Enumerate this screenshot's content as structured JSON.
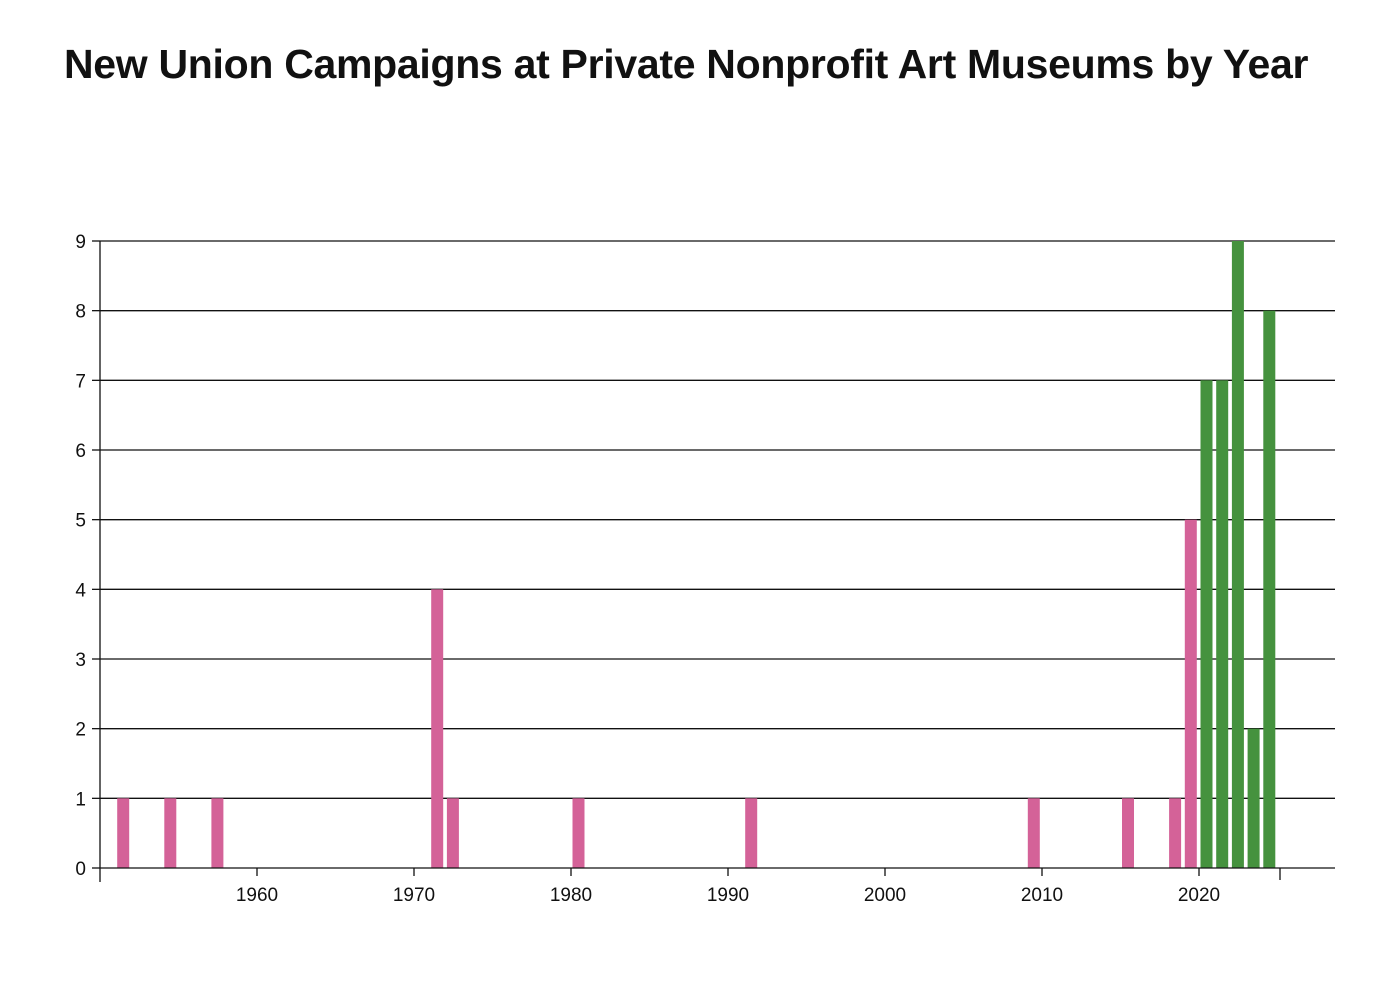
{
  "chart_data": {
    "type": "bar",
    "title": "New Union Campaigns at Private Nonprofit Art Museums by Year",
    "xlabel": "",
    "ylabel": "",
    "xlim": [
      1950,
      2026
    ],
    "ylim": [
      0,
      9
    ],
    "y_ticks": [
      "0",
      "1",
      "2",
      "3",
      "4",
      "5",
      "6",
      "7",
      "8",
      "9"
    ],
    "x_ticks": [
      "1960",
      "1970",
      "1980",
      "1990",
      "2000",
      "2010",
      "2020"
    ],
    "grid": "horizontal",
    "colors": {
      "earlier": "#d46298",
      "recent": "#45923e",
      "axis": "#111111"
    },
    "bars": [
      {
        "year": 1951,
        "value": 1,
        "group": "earlier"
      },
      {
        "year": 1954,
        "value": 1,
        "group": "earlier"
      },
      {
        "year": 1957,
        "value": 1,
        "group": "earlier"
      },
      {
        "year": 1971,
        "value": 4,
        "group": "earlier"
      },
      {
        "year": 1972,
        "value": 1,
        "group": "earlier"
      },
      {
        "year": 1980,
        "value": 1,
        "group": "earlier"
      },
      {
        "year": 1991,
        "value": 1,
        "group": "earlier"
      },
      {
        "year": 2009,
        "value": 1,
        "group": "earlier"
      },
      {
        "year": 2015,
        "value": 1,
        "group": "earlier"
      },
      {
        "year": 2018,
        "value": 1,
        "group": "earlier"
      },
      {
        "year": 2019,
        "value": 5,
        "group": "earlier"
      },
      {
        "year": 2020,
        "value": 7,
        "group": "recent"
      },
      {
        "year": 2021,
        "value": 7,
        "group": "recent"
      },
      {
        "year": 2022,
        "value": 9,
        "group": "recent"
      },
      {
        "year": 2023,
        "value": 2,
        "group": "recent"
      },
      {
        "year": 2024,
        "value": 8,
        "group": "recent"
      }
    ]
  }
}
